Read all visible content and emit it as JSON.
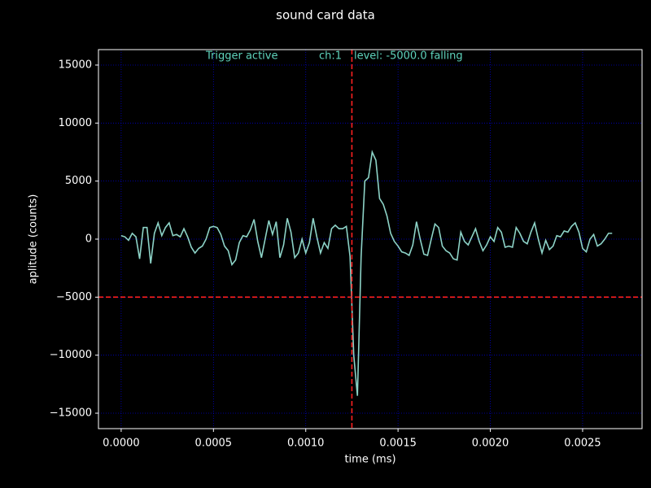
{
  "chart_data": {
    "type": "line",
    "title": "sound card data",
    "x_label": "time (ms)",
    "y_label": "aplitude (counts)",
    "x": [
      0,
      2e-05,
      4e-05,
      6e-05,
      8e-05,
      0.0001,
      0.00012,
      0.00014,
      0.00016,
      0.00018,
      0.0002,
      0.00022,
      0.00024,
      0.00026,
      0.00028,
      0.0003,
      0.00032,
      0.00034,
      0.00036,
      0.00038,
      0.0004,
      0.00042,
      0.00044,
      0.00046,
      0.00048,
      0.0005,
      0.00052,
      0.00054,
      0.00056,
      0.00058,
      0.0006,
      0.00062,
      0.00064,
      0.00066,
      0.00068,
      0.0007,
      0.00072,
      0.00074,
      0.00076,
      0.00078,
      0.0008,
      0.00082,
      0.00084,
      0.00086,
      0.00088,
      0.0009,
      0.00092,
      0.00094,
      0.00096,
      0.00098,
      0.001,
      0.00102,
      0.00104,
      0.00106,
      0.00108,
      0.0011,
      0.00112,
      0.00114,
      0.00116,
      0.00118,
      0.0012,
      0.00122,
      0.00124,
      0.00126,
      0.00128,
      0.0013,
      0.00132,
      0.00134,
      0.00136,
      0.00138,
      0.0014,
      0.00142,
      0.00144,
      0.00146,
      0.00148,
      0.0015,
      0.00152,
      0.00154,
      0.00156,
      0.00158,
      0.0016,
      0.00162,
      0.00164,
      0.00166,
      0.00168,
      0.0017,
      0.00172,
      0.00174,
      0.00176,
      0.00178,
      0.0018,
      0.00182,
      0.00184,
      0.00186,
      0.00188,
      0.0019,
      0.00192,
      0.00194,
      0.00196,
      0.00198,
      0.002,
      0.00202,
      0.00204,
      0.00206,
      0.00208,
      0.0021,
      0.00212,
      0.00214,
      0.00216,
      0.00218,
      0.0022,
      0.00222,
      0.00224,
      0.00226,
      0.00228,
      0.0023,
      0.00232,
      0.00234,
      0.00236,
      0.00238,
      0.0024,
      0.00242,
      0.00244,
      0.00246,
      0.00248,
      0.0025,
      0.00252,
      0.00254,
      0.00256,
      0.00258,
      0.0026,
      0.00262,
      0.00264,
      0.00266
    ],
    "series": [
      {
        "color": "#8dd3c7",
        "values": [
          300,
          200,
          -100,
          500,
          200,
          -1700,
          1000,
          1000,
          -2100,
          500,
          1400,
          300,
          1000,
          1400,
          300,
          400,
          200,
          900,
          200,
          -700,
          -1200,
          -800,
          -600,
          0,
          1000,
          1100,
          1000,
          400,
          -600,
          -1000,
          -2200,
          -1800,
          -300,
          300,
          200,
          800,
          1700,
          -200,
          -1600,
          0,
          1600,
          400,
          1500,
          -1600,
          -500,
          1800,
          600,
          -1600,
          -1200,
          0,
          -1200,
          -300,
          1800,
          200,
          -1200,
          -300,
          -800,
          900,
          1200,
          900,
          900,
          1100,
          -1500,
          -10000,
          -13500,
          -1500,
          5000,
          5300,
          7500,
          6800,
          3500,
          3000,
          2000,
          500,
          -200,
          -600,
          -1100,
          -1200,
          -1400,
          -500,
          1500,
          0,
          -1300,
          -1400,
          0,
          1300,
          1000,
          -600,
          -1000,
          -1200,
          -1700,
          -1800,
          600,
          -200,
          -500,
          200,
          900,
          -200,
          -1000,
          -500,
          200,
          -200,
          1000,
          600,
          -700,
          -600,
          -700,
          1000,
          500,
          -200,
          -400,
          600,
          1400,
          0,
          -1200,
          -100,
          -900,
          -600,
          300,
          200,
          700,
          600,
          1100,
          1400,
          600,
          -800,
          -1100,
          0,
          400,
          -600,
          -400,
          0,
          500,
          500
        ]
      }
    ],
    "xlim": [
      -0.000123,
      0.002822
    ],
    "ylim": [
      -16330,
      16330
    ],
    "xticks": [
      {
        "value": 0,
        "label": "0.0000"
      },
      {
        "value": 0.0005,
        "label": "0.0005"
      },
      {
        "value": 0.001,
        "label": "0.0010"
      },
      {
        "value": 0.0015,
        "label": "0.0015"
      },
      {
        "value": 0.002,
        "label": "0.0020"
      },
      {
        "value": 0.0025,
        "label": "0.0025"
      }
    ],
    "yticks": [
      {
        "value": -15000,
        "label": "−15000"
      },
      {
        "value": -10000,
        "label": "−10000"
      },
      {
        "value": -5000,
        "label": "−5000"
      },
      0,
      5000,
      10000,
      15000
    ],
    "grid": true,
    "grid_color": "#0000cc",
    "trigger": {
      "x": 0.00125,
      "level": -5000,
      "color": "#ff2020"
    },
    "annotations": [
      "Trigger active",
      "ch:1",
      "level: -5000.0  falling"
    ],
    "annotation_color": "#5fd3bc"
  }
}
